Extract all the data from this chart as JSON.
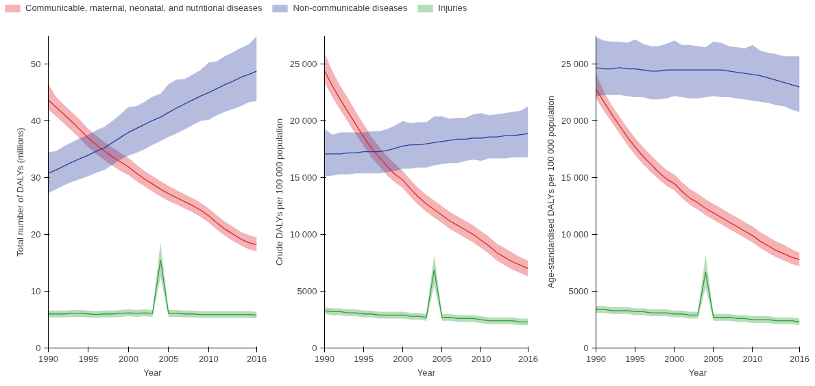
{
  "chart_data": [
    {
      "type": "line",
      "xlabel": "Year",
      "ylabel": "Total number of DALYs (millions)",
      "legend": "top",
      "grid": false,
      "xlim": [
        1990,
        2016
      ],
      "xticks": [
        1990,
        1995,
        2000,
        2005,
        2010,
        2016
      ],
      "ylim": [
        0,
        55
      ],
      "yticks": [
        0,
        10,
        20,
        30,
        40,
        50
      ],
      "x": [
        1990,
        1991,
        1992,
        1993,
        1994,
        1995,
        1996,
        1997,
        1998,
        1999,
        2000,
        2001,
        2002,
        2003,
        2004,
        2005,
        2006,
        2007,
        2008,
        2009,
        2010,
        2011,
        2012,
        2013,
        2014,
        2015,
        2016
      ],
      "series": [
        {
          "name": "Communicable, maternal, neonatal, and nutritional diseases",
          "color": "#e0262a",
          "values": [
            43.7,
            42.4,
            41.1,
            39.8,
            38.4,
            37.0,
            35.8,
            34.7,
            33.7,
            32.8,
            31.9,
            30.8,
            29.8,
            28.9,
            28.0,
            27.2,
            26.5,
            25.8,
            25.1,
            24.3,
            23.3,
            22.1,
            21.0,
            20.1,
            19.2,
            18.6,
            18.2
          ],
          "lower": [
            42.0,
            40.8,
            39.5,
            38.2,
            36.8,
            35.4,
            34.2,
            33.1,
            32.1,
            31.2,
            30.5,
            29.4,
            28.5,
            27.6,
            26.7,
            25.9,
            25.3,
            24.6,
            23.9,
            23.1,
            22.1,
            20.9,
            19.8,
            18.9,
            18.1,
            17.4,
            17.0
          ],
          "upper": [
            46.5,
            44.2,
            42.8,
            41.5,
            40.1,
            38.6,
            37.4,
            36.3,
            35.3,
            34.4,
            33.5,
            32.3,
            31.2,
            30.3,
            29.4,
            28.6,
            27.8,
            27.1,
            26.4,
            25.6,
            24.6,
            23.4,
            22.3,
            21.4,
            20.5,
            19.9,
            19.5
          ]
        },
        {
          "name": "Non-communicable diseases",
          "color": "#2b3ea0",
          "values": [
            30.8,
            31.4,
            32.1,
            32.8,
            33.4,
            34.0,
            34.7,
            35.3,
            36.2,
            37.1,
            38.0,
            38.7,
            39.4,
            40.1,
            40.7,
            41.5,
            42.3,
            43.0,
            43.7,
            44.4,
            45.0,
            45.7,
            46.4,
            47.0,
            47.7,
            48.2,
            48.8
          ],
          "lower": [
            27.3,
            28.0,
            28.7,
            29.3,
            29.8,
            30.3,
            30.9,
            31.4,
            32.3,
            33.2,
            33.9,
            34.4,
            35.0,
            35.8,
            36.5,
            37.2,
            37.8,
            38.5,
            39.3,
            40.0,
            40.2,
            41.0,
            41.6,
            42.1,
            42.6,
            43.3,
            43.5
          ],
          "upper": [
            34.5,
            34.7,
            35.6,
            36.3,
            37.0,
            37.6,
            38.4,
            39.0,
            40.0,
            41.2,
            42.5,
            42.6,
            43.4,
            44.3,
            44.8,
            46.5,
            47.3,
            47.4,
            48.2,
            49.0,
            50.3,
            50.5,
            51.4,
            52.1,
            52.9,
            53.5,
            55.0
          ]
        },
        {
          "name": "Injuries",
          "color": "#2f9e3a",
          "values": [
            6.0,
            6.0,
            6.0,
            6.1,
            6.1,
            6.0,
            5.9,
            6.0,
            6.0,
            6.1,
            6.2,
            6.1,
            6.2,
            6.1,
            15.5,
            6.1,
            6.1,
            6.0,
            6.0,
            5.9,
            5.9,
            5.9,
            5.9,
            5.9,
            5.9,
            5.9,
            5.8
          ],
          "lower": [
            5.4,
            5.4,
            5.4,
            5.5,
            5.5,
            5.4,
            5.3,
            5.4,
            5.4,
            5.5,
            5.6,
            5.5,
            5.6,
            5.5,
            12.5,
            5.5,
            5.5,
            5.4,
            5.4,
            5.3,
            5.3,
            5.3,
            5.3,
            5.3,
            5.3,
            5.3,
            5.2
          ],
          "upper": [
            6.6,
            6.6,
            6.6,
            6.7,
            6.7,
            6.6,
            6.5,
            6.6,
            6.6,
            6.7,
            6.8,
            6.7,
            6.8,
            6.7,
            18.6,
            6.7,
            6.7,
            6.6,
            6.6,
            6.5,
            6.5,
            6.5,
            6.5,
            6.5,
            6.5,
            6.5,
            6.4
          ]
        }
      ]
    },
    {
      "type": "line",
      "xlabel": "Year",
      "ylabel": "Crude DALYs per 100 000 population",
      "grid": false,
      "xlim": [
        1990,
        2016
      ],
      "xticks": [
        1990,
        1995,
        2000,
        2005,
        2010,
        2016
      ],
      "ylim": [
        0,
        27500
      ],
      "yticks": [
        0,
        5000,
        {
          "value": 10000,
          "label": "10 000"
        },
        {
          "value": 15000,
          "label": "15 000"
        },
        {
          "value": 20000,
          "label": "20 000"
        },
        {
          "value": 25000,
          "label": "25 000"
        }
      ],
      "x": [
        1990,
        1991,
        1992,
        1993,
        1994,
        1995,
        1996,
        1997,
        1998,
        1999,
        2000,
        2001,
        2002,
        2003,
        2004,
        2005,
        2006,
        2007,
        2008,
        2009,
        2010,
        2011,
        2012,
        2013,
        2014,
        2015,
        2016
      ],
      "series": [
        {
          "color": "#e0262a",
          "values": [
            24400,
            23100,
            21900,
            20800,
            19700,
            18600,
            17600,
            16800,
            16000,
            15300,
            14800,
            14000,
            13300,
            12700,
            12200,
            11700,
            11200,
            10800,
            10400,
            10000,
            9500,
            9000,
            8400,
            8000,
            7600,
            7300,
            7000
          ],
          "lower": [
            23400,
            22100,
            21000,
            19900,
            18800,
            17800,
            16800,
            16000,
            15200,
            14600,
            14100,
            13300,
            12600,
            12000,
            11500,
            11000,
            10500,
            10100,
            9700,
            9300,
            8800,
            8300,
            7700,
            7300,
            6900,
            6600,
            6300
          ],
          "upper": [
            26000,
            24400,
            23100,
            22000,
            20800,
            19700,
            18600,
            17700,
            16900,
            16200,
            15600,
            14800,
            14100,
            13500,
            13000,
            12500,
            12000,
            11600,
            11200,
            10800,
            10300,
            9800,
            9200,
            8800,
            8400,
            8000,
            7700
          ]
        },
        {
          "color": "#2b3ea0",
          "values": [
            17100,
            17100,
            17100,
            17200,
            17200,
            17300,
            17300,
            17300,
            17400,
            17600,
            17800,
            17900,
            17900,
            18000,
            18100,
            18200,
            18300,
            18400,
            18400,
            18500,
            18500,
            18600,
            18600,
            18700,
            18700,
            18800,
            18900
          ],
          "lower": [
            15100,
            15200,
            15300,
            15300,
            15400,
            15400,
            15400,
            15400,
            15500,
            15600,
            15800,
            15800,
            15900,
            15900,
            16100,
            16200,
            16300,
            16300,
            16500,
            16600,
            16500,
            16700,
            16700,
            16700,
            16800,
            16800,
            16800
          ],
          "upper": [
            19300,
            18800,
            19000,
            19000,
            19000,
            19000,
            19100,
            19100,
            19300,
            19600,
            20000,
            19800,
            19900,
            19900,
            20400,
            20400,
            20200,
            20300,
            20300,
            20600,
            20700,
            20500,
            20600,
            20700,
            20800,
            20900,
            21300
          ]
        },
        {
          "color": "#2f9e3a",
          "values": [
            3300,
            3200,
            3200,
            3100,
            3100,
            3000,
            3000,
            2900,
            2900,
            2900,
            2900,
            2800,
            2800,
            2700,
            6900,
            2700,
            2700,
            2600,
            2600,
            2600,
            2500,
            2400,
            2400,
            2400,
            2400,
            2300,
            2300
          ],
          "lower": [
            3000,
            2900,
            2900,
            2800,
            2800,
            2700,
            2700,
            2600,
            2600,
            2600,
            2600,
            2500,
            2500,
            2400,
            5500,
            2400,
            2400,
            2300,
            2300,
            2300,
            2200,
            2100,
            2100,
            2100,
            2100,
            2000,
            2000
          ],
          "upper": [
            3600,
            3500,
            3500,
            3400,
            3400,
            3300,
            3300,
            3200,
            3200,
            3200,
            3200,
            3100,
            3100,
            3000,
            8200,
            3000,
            3000,
            2900,
            2900,
            2900,
            2800,
            2700,
            2700,
            2700,
            2700,
            2600,
            2600
          ]
        }
      ]
    },
    {
      "type": "line",
      "xlabel": "Year",
      "ylabel": "Age-standardised DALYs per 100 000 population",
      "grid": false,
      "xlim": [
        1990,
        2016
      ],
      "xticks": [
        1990,
        1995,
        2000,
        2005,
        2010,
        2016
      ],
      "ylim": [
        0,
        27500
      ],
      "yticks": [
        0,
        5000,
        {
          "value": 10000,
          "label": "10 000"
        },
        {
          "value": 15000,
          "label": "15 000"
        },
        {
          "value": 20000,
          "label": "20 000"
        },
        {
          "value": 25000,
          "label": "25 000"
        }
      ],
      "x": [
        1990,
        1991,
        1992,
        1993,
        1994,
        1995,
        1996,
        1997,
        1998,
        1999,
        2000,
        2001,
        2002,
        2003,
        2004,
        2005,
        2006,
        2007,
        2008,
        2009,
        2010,
        2011,
        2012,
        2013,
        2014,
        2015,
        2016
      ],
      "series": [
        {
          "color": "#e0262a",
          "values": [
            22800,
            21700,
            20600,
            19600,
            18600,
            17700,
            16900,
            16200,
            15500,
            14900,
            14500,
            13800,
            13200,
            12800,
            12300,
            11900,
            11500,
            11100,
            10700,
            10300,
            9900,
            9400,
            9000,
            8600,
            8300,
            8000,
            7800
          ],
          "lower": [
            22000,
            20900,
            19900,
            18900,
            17900,
            17000,
            16200,
            15500,
            14900,
            14300,
            13900,
            13200,
            12600,
            12200,
            11700,
            11300,
            10900,
            10500,
            10100,
            9700,
            9300,
            8800,
            8400,
            8000,
            7700,
            7400,
            7200
          ],
          "upper": [
            24200,
            22600,
            21400,
            20400,
            19400,
            18500,
            17700,
            17000,
            16300,
            15700,
            15300,
            14600,
            14000,
            13600,
            13100,
            12700,
            12300,
            11900,
            11500,
            11100,
            10700,
            10200,
            9800,
            9400,
            9100,
            8700,
            8400
          ]
        },
        {
          "color": "#2b3ea0",
          "values": [
            24700,
            24600,
            24600,
            24700,
            24600,
            24600,
            24500,
            24400,
            24400,
            24500,
            24500,
            24500,
            24500,
            24500,
            24500,
            24500,
            24500,
            24400,
            24300,
            24200,
            24100,
            24000,
            23800,
            23600,
            23400,
            23200,
            23000
          ],
          "lower": [
            22200,
            22300,
            22300,
            22300,
            22200,
            22100,
            22100,
            21900,
            21900,
            22000,
            22200,
            22100,
            22000,
            22000,
            22100,
            22200,
            22100,
            22100,
            22000,
            21900,
            21800,
            21700,
            21600,
            21400,
            21300,
            21000,
            20800
          ],
          "upper": [
            27400,
            27100,
            27000,
            27000,
            26900,
            27200,
            26800,
            26600,
            26600,
            26800,
            27100,
            26700,
            26700,
            26600,
            26500,
            27000,
            26900,
            26600,
            26500,
            26400,
            26700,
            26200,
            26000,
            25900,
            25700,
            25700,
            25700
          ]
        },
        {
          "color": "#2f9e3a",
          "values": [
            3400,
            3400,
            3300,
            3300,
            3300,
            3200,
            3200,
            3100,
            3100,
            3100,
            3000,
            3000,
            2900,
            2900,
            6700,
            2700,
            2700,
            2700,
            2600,
            2600,
            2500,
            2500,
            2500,
            2400,
            2400,
            2400,
            2300
          ],
          "lower": [
            3100,
            3100,
            3000,
            3000,
            3000,
            2900,
            2900,
            2800,
            2800,
            2800,
            2700,
            2700,
            2600,
            2600,
            5300,
            2400,
            2400,
            2400,
            2300,
            2300,
            2200,
            2200,
            2200,
            2100,
            2100,
            2100,
            2000
          ],
          "upper": [
            3700,
            3700,
            3600,
            3600,
            3600,
            3500,
            3500,
            3400,
            3400,
            3400,
            3300,
            3300,
            3200,
            3200,
            8200,
            3000,
            3000,
            3000,
            2900,
            2900,
            2800,
            2800,
            2800,
            2700,
            2700,
            2700,
            2600
          ]
        }
      ]
    }
  ]
}
